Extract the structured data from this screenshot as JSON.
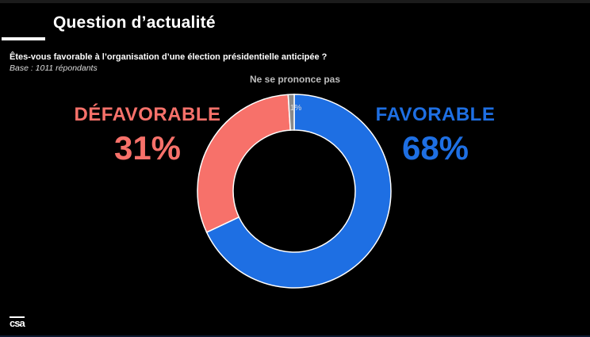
{
  "header": {
    "title": "Question d’actualité"
  },
  "chart_data": {
    "type": "pie",
    "variant": "donut",
    "title": "Êtes-vous favorable à l’organisation d’une élection présidentielle anticipée ?",
    "subtitle": "Base : 1011 répondants",
    "slices": [
      {
        "label": "FAVORABLE",
        "value": 68,
        "value_label": "68%",
        "color": "#1e6fe3"
      },
      {
        "label": "DÉFAVORABLE",
        "value": 31,
        "value_label": "31%",
        "color": "#f7716a"
      },
      {
        "label": "Ne se prononce pas",
        "value": 1,
        "value_label": "1%",
        "color": "#8a8a8a"
      }
    ]
  },
  "footer": {
    "logo": "csa"
  }
}
